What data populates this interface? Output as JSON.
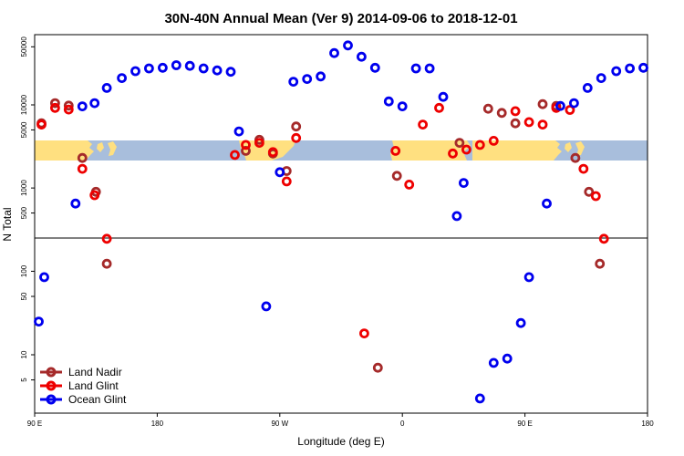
{
  "chart_data": {
    "type": "scatter",
    "title": "30N-40N Annual Mean (Ver 9)   2014-09-06 to 2018-12-01",
    "xlabel": "Longitude (deg E)",
    "ylabel": "N Total",
    "yscale": "log",
    "x_ticks": [
      {
        "value": 90,
        "label": "90 E"
      },
      {
        "value": 180,
        "label": "180"
      },
      {
        "value": 270,
        "label": "90 W"
      },
      {
        "value": 360,
        "label": "0"
      },
      {
        "value": 450,
        "label": "90 E"
      },
      {
        "value": 540,
        "label": "180"
      }
    ],
    "upper_panel": {
      "ylim": [
        250,
        70000
      ],
      "y_ticks": [
        {
          "value": 500,
          "label": "500"
        },
        {
          "value": 1000,
          "label": "1000"
        },
        {
          "value": 5000,
          "label": "5000"
        },
        {
          "value": 10000,
          "label": "10000"
        },
        {
          "value": 50000,
          "label": "50000"
        }
      ],
      "map_band": {
        "description": "equirectangular land/ocean strip for 30N-40N",
        "land_color": "#FFE080",
        "ocean_color": "#A8BEDC"
      }
    },
    "lower_panel": {
      "ylim": [
        2,
        250
      ],
      "y_ticks": [
        {
          "value": 5,
          "label": "5"
        },
        {
          "value": 10,
          "label": "10"
        },
        {
          "value": 50,
          "label": "50"
        },
        {
          "value": 100,
          "label": "100"
        }
      ]
    },
    "legend_position": "bottom-left",
    "series": [
      {
        "name": "Land Nadir",
        "color": "#A52A2A",
        "points": [
          [
            95,
            6000
          ],
          [
            105,
            10500
          ],
          [
            115,
            9800
          ],
          [
            125,
            2300
          ],
          [
            135,
            900
          ],
          [
            143,
            123
          ],
          [
            245,
            2800
          ],
          [
            255,
            3800
          ],
          [
            265,
            2600
          ],
          [
            275,
            1600
          ],
          [
            282,
            5500
          ],
          [
            342,
            7
          ],
          [
            356,
            1400
          ],
          [
            402,
            3500
          ],
          [
            423,
            9000
          ],
          [
            433,
            8000
          ],
          [
            443,
            6000
          ],
          [
            463,
            10200
          ],
          [
            473,
            9700
          ],
          [
            487,
            2300
          ],
          [
            497,
            900
          ],
          [
            505,
            123
          ]
        ]
      },
      {
        "name": "Land Glint",
        "color": "#EE0000",
        "points": [
          [
            95,
            5800
          ],
          [
            105,
            9200
          ],
          [
            115,
            8800
          ],
          [
            125,
            1700
          ],
          [
            134,
            820
          ],
          [
            143,
            245
          ],
          [
            237,
            2500
          ],
          [
            245,
            3300
          ],
          [
            255,
            3500
          ],
          [
            265,
            2700
          ],
          [
            275,
            1200
          ],
          [
            282,
            4000
          ],
          [
            332,
            18
          ],
          [
            355,
            2800
          ],
          [
            365,
            1100
          ],
          [
            375,
            5800
          ],
          [
            387,
            9200
          ],
          [
            397,
            2600
          ],
          [
            407,
            2900
          ],
          [
            417,
            3300
          ],
          [
            427,
            3700
          ],
          [
            443,
            8400
          ],
          [
            453,
            6200
          ],
          [
            463,
            5800
          ],
          [
            473,
            9200
          ],
          [
            483,
            8700
          ],
          [
            493,
            1700
          ],
          [
            502,
            800
          ],
          [
            508,
            245
          ]
        ]
      },
      {
        "name": "Ocean Glint",
        "color": "#0000EE",
        "points": [
          [
            93,
            25
          ],
          [
            97,
            85
          ],
          [
            120,
            650
          ],
          [
            125,
            9600
          ],
          [
            134,
            10500
          ],
          [
            143,
            16000
          ],
          [
            154,
            21000
          ],
          [
            164,
            25500
          ],
          [
            174,
            27500
          ],
          [
            184,
            28000
          ],
          [
            194,
            30000
          ],
          [
            204,
            29500
          ],
          [
            214,
            27500
          ],
          [
            224,
            26000
          ],
          [
            234,
            25000
          ],
          [
            240,
            4800
          ],
          [
            260,
            38
          ],
          [
            270,
            1550
          ],
          [
            280,
            19000
          ],
          [
            290,
            20500
          ],
          [
            300,
            22000
          ],
          [
            310,
            42000
          ],
          [
            320,
            52000
          ],
          [
            330,
            38000
          ],
          [
            340,
            28000
          ],
          [
            350,
            11000
          ],
          [
            360,
            9600
          ],
          [
            370,
            27500
          ],
          [
            380,
            27500
          ],
          [
            390,
            12500
          ],
          [
            400,
            460
          ],
          [
            405,
            1150
          ],
          [
            417,
            3
          ],
          [
            427,
            8
          ],
          [
            437,
            9
          ],
          [
            447,
            24
          ],
          [
            453,
            85
          ],
          [
            466,
            650
          ],
          [
            476,
            9700
          ],
          [
            486,
            10500
          ],
          [
            496,
            16000
          ],
          [
            506,
            21000
          ],
          [
            517,
            25500
          ],
          [
            527,
            27500
          ],
          [
            537,
            28000
          ]
        ]
      }
    ]
  }
}
